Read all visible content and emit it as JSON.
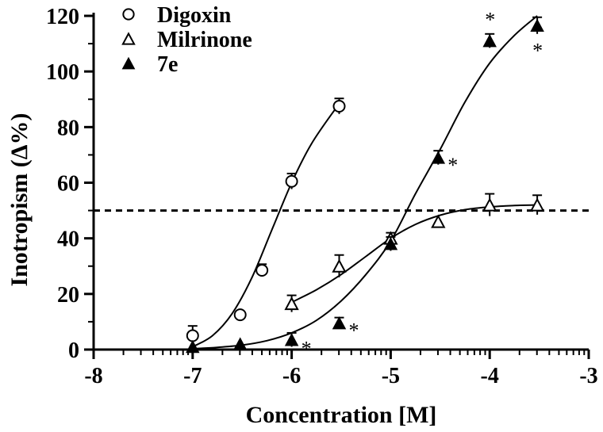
{
  "chart_data": {
    "type": "scatter",
    "xlabel": "Concentration [M]",
    "ylabel": "Inotropism (Δ%)",
    "xlim": [
      -8,
      -3
    ],
    "ylim": [
      0,
      120
    ],
    "x_ticks": [
      "-8",
      "-7",
      "-6",
      "-5",
      "-4",
      "-3"
    ],
    "y_ticks": [
      "0",
      "20",
      "40",
      "60",
      "80",
      "100",
      "120"
    ],
    "reference_line": {
      "y": 50,
      "style": "dashed"
    },
    "series": [
      {
        "name": "Digoxin",
        "marker": "open-circle",
        "points": [
          {
            "x": -7.0,
            "y": 5,
            "err": 3.5
          },
          {
            "x": -6.52,
            "y": 12.5,
            "err": 0
          },
          {
            "x": -6.3,
            "y": 28.5,
            "err": 2.2
          },
          {
            "x": -6.0,
            "y": 60.5,
            "err": 2.8
          },
          {
            "x": -5.52,
            "y": 87.5,
            "err": 2.8
          }
        ],
        "curve": [
          {
            "x": -7.0,
            "y": 1
          },
          {
            "x": -6.8,
            "y": 5
          },
          {
            "x": -6.6,
            "y": 13
          },
          {
            "x": -6.4,
            "y": 26
          },
          {
            "x": -6.2,
            "y": 43
          },
          {
            "x": -6.0,
            "y": 60
          },
          {
            "x": -5.8,
            "y": 74
          },
          {
            "x": -5.55,
            "y": 87
          }
        ]
      },
      {
        "name": "Milrinone",
        "marker": "open-triangle",
        "points": [
          {
            "x": -6.0,
            "y": 16.5,
            "err": 3
          },
          {
            "x": -5.52,
            "y": 30,
            "err": 4
          },
          {
            "x": -5.0,
            "y": 40,
            "err": 2
          },
          {
            "x": -4.52,
            "y": 46,
            "err": 0
          },
          {
            "x": -4.0,
            "y": 52,
            "err": 4
          },
          {
            "x": -3.52,
            "y": 52,
            "err": 3.5
          }
        ],
        "curve": [
          {
            "x": -6.0,
            "y": 17
          },
          {
            "x": -5.75,
            "y": 21.5
          },
          {
            "x": -5.5,
            "y": 27
          },
          {
            "x": -5.25,
            "y": 33.5
          },
          {
            "x": -5.0,
            "y": 40
          },
          {
            "x": -4.75,
            "y": 45
          },
          {
            "x": -4.5,
            "y": 48.3
          },
          {
            "x": -4.25,
            "y": 50.3
          },
          {
            "x": -4.0,
            "y": 51.3
          },
          {
            "x": -3.75,
            "y": 51.8
          },
          {
            "x": -3.52,
            "y": 52
          }
        ]
      },
      {
        "name": "7e",
        "marker": "filled-triangle",
        "points": [
          {
            "x": -7.0,
            "y": 1,
            "err": 0,
            "star": false
          },
          {
            "x": -6.52,
            "y": 2,
            "err": 0,
            "star": false
          },
          {
            "x": -6.0,
            "y": 3.5,
            "err": 2.5,
            "star": true,
            "star_pos": "lower-right"
          },
          {
            "x": -5.52,
            "y": 9.5,
            "err": 2,
            "star": true,
            "star_pos": "right"
          },
          {
            "x": -5.0,
            "y": 38,
            "err": 2.5,
            "star": false
          },
          {
            "x": -4.52,
            "y": 69,
            "err": 2.5,
            "star": true,
            "star_pos": "right"
          },
          {
            "x": -4.0,
            "y": 111,
            "err": 2.5,
            "star": true,
            "star_pos": "above"
          },
          {
            "x": -3.52,
            "y": 116.5,
            "err": 3,
            "star": true,
            "star_pos": "below"
          }
        ],
        "curve": [
          {
            "x": -7.0,
            "y": 0.3
          },
          {
            "x": -6.75,
            "y": 0.8
          },
          {
            "x": -6.5,
            "y": 1.6
          },
          {
            "x": -6.25,
            "y": 3.2
          },
          {
            "x": -6.0,
            "y": 6
          },
          {
            "x": -5.75,
            "y": 10.5
          },
          {
            "x": -5.5,
            "y": 17.5
          },
          {
            "x": -5.25,
            "y": 27
          },
          {
            "x": -5.0,
            "y": 39
          },
          {
            "x": -4.75,
            "y": 56
          },
          {
            "x": -4.5,
            "y": 72
          },
          {
            "x": -4.25,
            "y": 89
          },
          {
            "x": -4.0,
            "y": 103
          },
          {
            "x": -3.75,
            "y": 113
          },
          {
            "x": -3.52,
            "y": 120
          }
        ]
      }
    ],
    "significance_marker": "*",
    "legend": {
      "position": "top-left"
    }
  }
}
